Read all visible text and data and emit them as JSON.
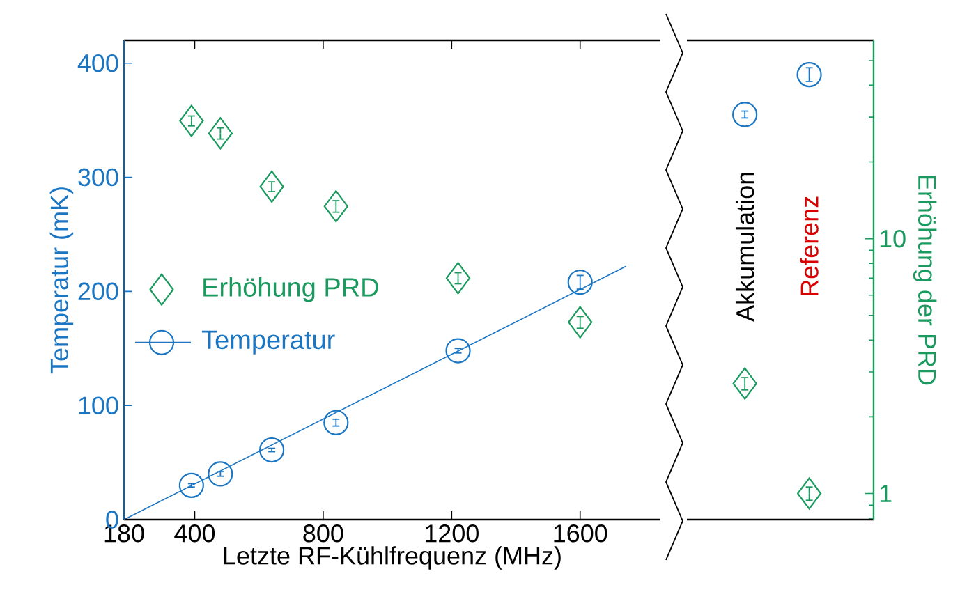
{
  "chart_data": [
    {
      "type": "scatter",
      "xlabel": "Letzte RF-Kühlfrequenz (MHz)",
      "ylabel": "Temperatur (mK)",
      "xlim": [
        180,
        1850
      ],
      "xticks": [
        180,
        400,
        800,
        1200,
        1600
      ],
      "ylim": [
        0,
        420
      ],
      "yticks": [
        0,
        100,
        200,
        300,
        400
      ],
      "y2lim": [
        0.79,
        60
      ],
      "log": "y2",
      "legend": "left",
      "series": [
        {
          "name": "Erhöhung PRD",
          "axis": "y2",
          "color": "#1a9a5e",
          "marker": "diamond",
          "x": [
            390,
            480,
            640,
            840,
            1220,
            1600
          ],
          "values": [
            29,
            25.9,
            16,
            13.4,
            7.0,
            4.7
          ],
          "errors": [
            1.3,
            1.3,
            0.7,
            0.7,
            0.35,
            0.25
          ]
        },
        {
          "name": "Temperatur",
          "color": "#1a75c2",
          "marker": "circle",
          "x": [
            390,
            480,
            640,
            840,
            1220,
            1600
          ],
          "values": [
            30,
            40,
            61,
            85,
            148,
            208
          ],
          "errors": [
            1.5,
            2,
            1.5,
            3,
            2,
            6
          ]
        },
        {
          "type": "line",
          "color": "#1a75c2",
          "marker": "none",
          "x": [
            180,
            1743
          ],
          "values": [
            0,
            222
          ]
        }
      ]
    },
    {
      "type": "scatter",
      "categories": [
        "Akkumulation",
        "Referenz"
      ],
      "ylim": [
        0,
        420
      ],
      "y2lim": [
        0.79,
        60
      ],
      "y2ticks": [
        1,
        10
      ],
      "y2label": "Erhöhung der PRD",
      "log": "y2",
      "series": [
        {
          "axis": "y2",
          "color": "#1a9a5e",
          "marker": "diamond",
          "values": [
            2.7,
            1.0
          ],
          "errors": [
            0.15,
            0.06
          ]
        },
        {
          "color": "#1a75c2",
          "marker": "circle",
          "values": [
            355,
            390
          ],
          "errors": [
            3,
            6
          ]
        }
      ]
    }
  ]
}
